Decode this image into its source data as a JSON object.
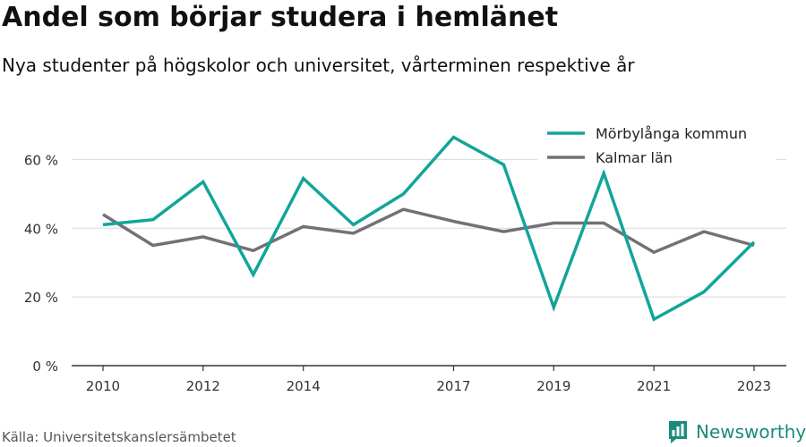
{
  "header": {
    "title": "Andel som börjar studera i hemlänet",
    "subtitle": "Nya studenter på högskolor och universitet, vårterminen respektive år"
  },
  "footer": {
    "source": "Källa: Universitetskanslersämbetet",
    "brand": "Newsworthy"
  },
  "colors": {
    "series1": "#12a59a",
    "series2": "#727176",
    "grid": "#d9d9d9",
    "axis": "#333333",
    "brand": "#1c8b7c"
  },
  "chart_data": {
    "type": "line",
    "x": [
      2010,
      2011,
      2012,
      2013,
      2014,
      2015,
      2016,
      2017,
      2018,
      2019,
      2020,
      2021,
      2022,
      2023
    ],
    "series": [
      {
        "name": "Mörbylånga kommun",
        "color": "#12a59a",
        "values": [
          41,
          42.5,
          53.5,
          26.5,
          54.5,
          41,
          50,
          66.5,
          58.5,
          17,
          56,
          13.5,
          21.5,
          36
        ]
      },
      {
        "name": "Kalmar län",
        "color": "#727176",
        "values": [
          44,
          35,
          37.5,
          33.5,
          40.5,
          38.5,
          45.5,
          42,
          39,
          41.5,
          41.5,
          33,
          39,
          35
        ]
      }
    ],
    "xticks": [
      2010,
      2012,
      2014,
      2017,
      2019,
      2021,
      2023
    ],
    "yticks": [
      0,
      20,
      40,
      60
    ],
    "ytick_labels": [
      "0 %",
      "20 %",
      "40 %",
      "60 %"
    ],
    "ylim": [
      0,
      70
    ],
    "xlim": [
      2010,
      2023
    ],
    "grid": true,
    "legend": "top-right"
  }
}
